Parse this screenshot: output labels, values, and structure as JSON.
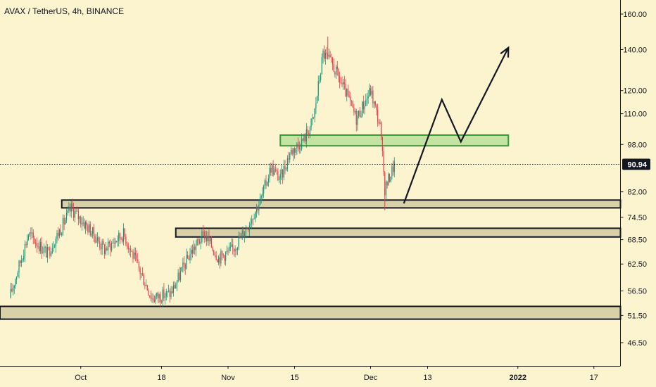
{
  "header": {
    "title": "AVAX / TetherUS, 4h, BINANCE"
  },
  "chart_data": {
    "type": "candlestick",
    "symbol": "AVAX / TetherUS",
    "interval": "4h",
    "exchange": "BINANCE",
    "scale": "log",
    "price_ticks": [
      "160.00",
      "140.00",
      "120.00",
      "110.00",
      "98.00",
      "82.00",
      "74.50",
      "68.50",
      "62.50",
      "56.50",
      "51.50",
      "46.50"
    ],
    "time_ticks": [
      {
        "label": "Oct",
        "date": "2021-10-01",
        "bold": false
      },
      {
        "label": "18",
        "date": "2021-10-18",
        "bold": false
      },
      {
        "label": "Nov",
        "date": "2021-11-01",
        "bold": false
      },
      {
        "label": "15",
        "date": "2021-11-15",
        "bold": false
      },
      {
        "label": "Dec",
        "date": "2021-12-01",
        "bold": false
      },
      {
        "label": "13",
        "date": "2021-12-13",
        "bold": false
      },
      {
        "label": "2022",
        "date": "2022-01-01",
        "bold": true
      },
      {
        "label": "17",
        "date": "2022-01-17",
        "bold": false
      }
    ],
    "last_price": "90.94",
    "colors": {
      "up": "#089981",
      "down": "#f23645",
      "background": "#fcf3cf"
    },
    "price_path": [
      [
        "2021-09-16",
        55
      ],
      [
        "2021-09-20",
        70
      ],
      [
        "2021-09-24",
        65
      ],
      [
        "2021-09-29",
        77
      ],
      [
        "2021-10-03",
        71
      ],
      [
        "2021-10-06",
        66
      ],
      [
        "2021-10-10",
        70
      ],
      [
        "2021-10-13",
        62
      ],
      [
        "2021-10-16",
        55
      ],
      [
        "2021-10-20",
        56
      ],
      [
        "2021-10-24",
        65
      ],
      [
        "2021-10-27",
        70
      ],
      [
        "2021-10-30",
        64
      ],
      [
        "2021-11-02",
        66
      ],
      [
        "2021-11-05",
        72
      ],
      [
        "2021-11-08",
        80
      ],
      [
        "2021-11-10",
        90
      ],
      [
        "2021-11-12",
        86
      ],
      [
        "2021-11-14",
        95
      ],
      [
        "2021-11-17",
        100
      ],
      [
        "2021-11-19",
        108
      ],
      [
        "2021-11-21",
        138
      ],
      [
        "2021-11-23",
        132
      ],
      [
        "2021-11-26",
        118
      ],
      [
        "2021-11-28",
        108
      ],
      [
        "2021-12-01",
        120
      ],
      [
        "2021-12-03",
        105
      ],
      [
        "2021-12-04",
        83
      ],
      [
        "2021-12-06",
        90.94
      ]
    ],
    "wick_high": {
      "date": "2021-11-22",
      "price": 147
    },
    "wick_low": {
      "date": "2021-12-04",
      "price": 76.5
    },
    "zones": [
      {
        "name": "upper-green-zone",
        "color": "#c4e2a2",
        "start": "2021-11-12",
        "end": "2021-12-30",
        "low": 97.5,
        "high": 101.5
      },
      {
        "name": "support-zone-1",
        "color": "#d8d0a8",
        "start": "2021-09-27",
        "end": "open",
        "low": 77.2,
        "high": 79.5
      },
      {
        "name": "support-zone-2",
        "color": "#d8d0a8",
        "start": "2021-10-21",
        "end": "open",
        "low": 69.2,
        "high": 71.5
      },
      {
        "name": "support-zone-3",
        "color": "#d8d0a8",
        "start": "2021-09-14",
        "end": "open",
        "low": 50.8,
        "high": 53.3
      }
    ],
    "projection_path": [
      [
        "2021-12-08",
        78.5
      ],
      [
        "2021-12-16",
        116
      ],
      [
        "2021-12-20",
        99
      ],
      [
        "2021-12-30",
        141
      ]
    ]
  }
}
